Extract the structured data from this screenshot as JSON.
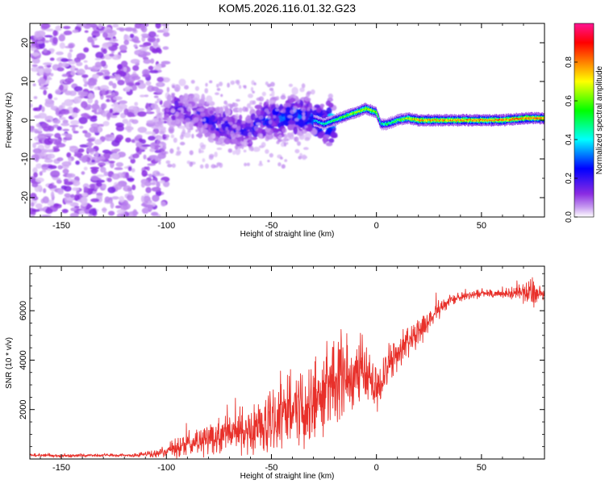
{
  "figure_title": "KOM5.2026.116.01.32.G23",
  "chart_data": [
    {
      "type": "heatmap",
      "title": "KOM5.2026.116.01.32.G23",
      "xlabel": "Height of straight line (km)",
      "ylabel": "Frequency (Hz)",
      "xlim": [
        -165,
        80
      ],
      "ylim": [
        -25,
        25
      ],
      "x_ticks": [
        -150,
        -100,
        -50,
        0,
        50
      ],
      "y_ticks": [
        -20,
        -10,
        0,
        10,
        20
      ],
      "colorbar": {
        "label": "Normalized spectral amplitude",
        "range": [
          0,
          1
        ],
        "ticks": [
          0.0,
          0.2,
          0.4,
          0.6,
          0.8
        ],
        "colormap": [
          "#ffffff",
          "#8a2be2",
          "#0000ff",
          "#00ffff",
          "#00ff00",
          "#ffff00",
          "#ff8000",
          "#ff0000",
          "#ff1493"
        ]
      },
      "description_regions": [
        {
          "x_range": [
            -165,
            -100
          ],
          "frequency_spread_hz": [
            -25,
            25
          ],
          "amplitude": "low, scattered"
        },
        {
          "x_range": [
            -100,
            -20
          ],
          "frequency_spread_hz": [
            -10,
            7
          ],
          "amplitude": "medium, clustered near 0 Hz"
        },
        {
          "x_range": [
            -20,
            80
          ],
          "frequency_spread_hz": [
            -2,
            3
          ],
          "amplitude": "high, narrow band at 0 Hz"
        }
      ],
      "ridge": {
        "x": [
          -100,
          -95,
          -90,
          -85,
          -80,
          -75,
          -70,
          -65,
          -60,
          -55,
          -50,
          -45,
          -40,
          -35,
          -30,
          -25,
          -20,
          -15,
          -10,
          -5,
          0,
          2,
          5,
          10,
          15,
          20,
          30,
          40,
          50,
          60,
          70,
          80
        ],
        "freq": [
          2,
          3,
          2,
          1,
          0,
          -1,
          -2,
          -3,
          -2,
          0,
          1,
          0,
          2,
          1,
          0,
          -1,
          0,
          1,
          2,
          3,
          2,
          -1,
          -1,
          0,
          0.5,
          0,
          0,
          0,
          0,
          0,
          0.5,
          0.5
        ],
        "amplitude": [
          0.15,
          0.2,
          0.2,
          0.2,
          0.22,
          0.25,
          0.25,
          0.22,
          0.25,
          0.3,
          0.3,
          0.3,
          0.35,
          0.32,
          0.35,
          0.4,
          0.45,
          0.5,
          0.55,
          0.6,
          0.55,
          0.4,
          0.45,
          0.5,
          0.6,
          0.7,
          0.7,
          0.7,
          0.72,
          0.72,
          0.72,
          0.72
        ]
      }
    },
    {
      "type": "line",
      "title": "",
      "xlabel": "Height of straight line (km)",
      "ylabel": "SNR (10 * v/v)",
      "xlim": [
        -165,
        80
      ],
      "ylim": [
        0,
        7800
      ],
      "x_ticks": [
        -150,
        -100,
        -50,
        0,
        50
      ],
      "y_ticks": [
        2000,
        4000,
        6000
      ],
      "series": [
        {
          "name": "SNR",
          "color": "#e8302a",
          "x": [
            -165,
            -150,
            -130,
            -115,
            -105,
            -100,
            -95,
            -90,
            -85,
            -80,
            -75,
            -70,
            -65,
            -60,
            -55,
            -50,
            -45,
            -40,
            -35,
            -30,
            -25,
            -20,
            -15,
            -10,
            -5,
            0,
            5,
            10,
            15,
            20,
            25,
            30,
            35,
            40,
            45,
            50,
            55,
            60,
            65,
            70,
            75,
            80
          ],
          "y": [
            150,
            120,
            160,
            150,
            200,
            300,
            450,
            550,
            700,
            800,
            900,
            1000,
            1100,
            1050,
            1300,
            1500,
            1700,
            1900,
            2000,
            2200,
            2500,
            3000,
            3200,
            3500,
            3300,
            2900,
            3700,
            4300,
            4700,
            5100,
            5600,
            6000,
            6400,
            6550,
            6650,
            6700,
            6700,
            6650,
            6700,
            6750,
            6700,
            6600
          ],
          "spread": [
            80,
            80,
            80,
            80,
            200,
            300,
            500,
            600,
            700,
            750,
            900,
            1000,
            1100,
            1200,
            1400,
            1500,
            1600,
            1700,
            1900,
            2000,
            2200,
            2400,
            2300,
            1800,
            1400,
            1200,
            1000,
            900,
            800,
            700,
            500,
            400,
            300,
            250,
            200,
            200,
            200,
            200,
            300,
            500,
            700,
            300
          ]
        }
      ]
    }
  ]
}
